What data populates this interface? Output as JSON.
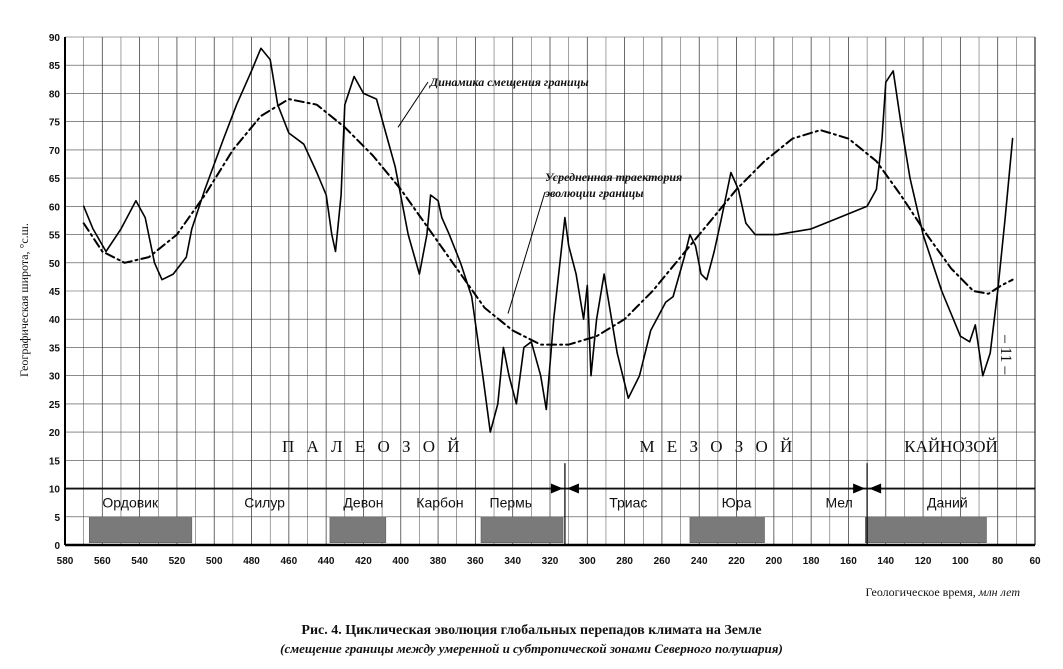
{
  "chart_data": {
    "type": "line",
    "xlabel": "Геологическое время, млн лет",
    "ylabel": "Географическая широта, °с.ш.",
    "xlim": [
      580,
      60
    ],
    "ylim": [
      0,
      90
    ],
    "x_reversed": true,
    "grid": true,
    "xticks": [
      580,
      560,
      540,
      520,
      500,
      480,
      460,
      440,
      420,
      400,
      380,
      360,
      340,
      320,
      300,
      280,
      260,
      240,
      220,
      200,
      180,
      160,
      140,
      120,
      100,
      80,
      60
    ],
    "yticks": [
      0,
      5,
      10,
      15,
      20,
      25,
      30,
      35,
      40,
      45,
      50,
      55,
      60,
      65,
      70,
      75,
      80,
      85,
      90
    ],
    "series": [
      {
        "name": "Динамика смещения границы",
        "style": "solid",
        "points": [
          [
            570,
            60
          ],
          [
            565,
            56
          ],
          [
            558,
            52
          ],
          [
            550,
            56
          ],
          [
            542,
            61
          ],
          [
            537,
            58
          ],
          [
            532,
            50
          ],
          [
            528,
            47
          ],
          [
            522,
            48
          ],
          [
            515,
            51
          ],
          [
            512,
            56
          ],
          [
            505,
            63
          ],
          [
            495,
            72
          ],
          [
            488,
            78
          ],
          [
            480,
            84
          ],
          [
            475,
            88
          ],
          [
            470,
            86
          ],
          [
            466,
            78
          ],
          [
            460,
            73
          ],
          [
            452,
            71
          ],
          [
            445,
            66
          ],
          [
            440,
            62
          ],
          [
            437,
            55
          ],
          [
            435,
            52
          ],
          [
            432,
            62
          ],
          [
            430,
            78
          ],
          [
            425,
            83
          ],
          [
            420,
            80
          ],
          [
            413,
            79
          ],
          [
            408,
            73
          ],
          [
            403,
            67
          ],
          [
            396,
            55
          ],
          [
            390,
            48
          ],
          [
            386,
            55
          ],
          [
            384,
            62
          ],
          [
            380,
            61
          ],
          [
            378,
            58
          ],
          [
            374,
            55
          ],
          [
            368,
            50
          ],
          [
            362,
            44
          ],
          [
            356,
            30
          ],
          [
            352,
            20
          ],
          [
            348,
            25
          ],
          [
            345,
            35
          ],
          [
            342,
            30
          ],
          [
            338,
            25
          ],
          [
            334,
            35
          ],
          [
            330,
            36
          ],
          [
            325,
            30
          ],
          [
            322,
            24
          ],
          [
            318,
            40
          ],
          [
            312,
            58
          ],
          [
            310,
            53
          ],
          [
            306,
            48
          ],
          [
            302,
            40
          ],
          [
            300,
            46
          ],
          [
            298,
            30
          ],
          [
            295,
            40
          ],
          [
            291,
            48
          ],
          [
            288,
            42
          ],
          [
            284,
            34
          ],
          [
            278,
            26
          ],
          [
            272,
            30
          ],
          [
            266,
            38
          ],
          [
            258,
            43
          ],
          [
            254,
            44
          ],
          [
            248,
            51
          ],
          [
            245,
            55
          ],
          [
            242,
            53
          ],
          [
            239,
            48
          ],
          [
            236,
            47
          ],
          [
            232,
            52
          ],
          [
            228,
            58
          ],
          [
            223,
            66
          ],
          [
            219,
            63
          ],
          [
            215,
            57
          ],
          [
            210,
            55
          ],
          [
            198,
            55
          ],
          [
            180,
            56
          ],
          [
            165,
            58
          ],
          [
            150,
            60
          ],
          [
            145,
            63
          ],
          [
            142,
            72
          ],
          [
            140,
            82
          ],
          [
            136,
            84
          ],
          [
            132,
            75
          ],
          [
            127,
            65
          ],
          [
            120,
            55
          ],
          [
            110,
            45
          ],
          [
            100,
            37
          ],
          [
            95,
            36
          ],
          [
            92,
            39
          ],
          [
            88,
            30
          ],
          [
            84,
            34
          ],
          [
            80,
            45
          ],
          [
            76,
            58
          ],
          [
            72,
            72
          ]
        ]
      },
      {
        "name": "Усредненная траектория эволюции границы",
        "style": "dashdot",
        "points": [
          [
            570,
            57
          ],
          [
            560,
            52
          ],
          [
            548,
            50
          ],
          [
            535,
            51
          ],
          [
            520,
            55
          ],
          [
            505,
            62
          ],
          [
            490,
            70
          ],
          [
            475,
            76
          ],
          [
            460,
            79
          ],
          [
            445,
            78
          ],
          [
            430,
            74
          ],
          [
            415,
            69
          ],
          [
            400,
            63
          ],
          [
            385,
            56
          ],
          [
            370,
            49
          ],
          [
            355,
            42
          ],
          [
            340,
            38
          ],
          [
            325,
            35.5
          ],
          [
            310,
            35.5
          ],
          [
            295,
            37
          ],
          [
            280,
            40
          ],
          [
            265,
            45
          ],
          [
            250,
            51
          ],
          [
            235,
            57
          ],
          [
            220,
            63
          ],
          [
            205,
            68
          ],
          [
            190,
            72
          ],
          [
            175,
            73.5
          ],
          [
            160,
            72
          ],
          [
            145,
            68
          ],
          [
            132,
            62
          ],
          [
            118,
            55
          ],
          [
            105,
            49
          ],
          [
            93,
            45
          ],
          [
            85,
            44.5
          ],
          [
            78,
            46
          ],
          [
            72,
            47
          ]
        ]
      }
    ],
    "annotations": [
      "Динамика смещения границы",
      "Усредненная траектория",
      "эволюции границы"
    ],
    "eras": [
      {
        "label": "П А Л Е О З О Й",
        "x": 415,
        "y": 17.5
      },
      {
        "label": "М Е З О З О Й",
        "x": 230,
        "y": 17.5
      },
      {
        "label": "КАЙНОЗОЙ",
        "x": 105,
        "y": 17.5
      }
    ],
    "era_boundaries": [
      312,
      150
    ],
    "periods": [
      {
        "label": "Ордовик",
        "x": 545
      },
      {
        "label": "Силур",
        "x": 473
      },
      {
        "label": "Девон",
        "x": 420
      },
      {
        "label": "Карбон",
        "x": 379
      },
      {
        "label": "Пермь",
        "x": 341
      },
      {
        "label": "Триас",
        "x": 278
      },
      {
        "label": "Юра",
        "x": 220
      },
      {
        "label": "Мел",
        "x": 165
      },
      {
        "label": "Даний",
        "x": 107
      }
    ],
    "glacial_bars": [
      [
        567,
        512
      ],
      [
        438,
        408
      ],
      [
        357,
        313
      ],
      [
        245,
        205
      ],
      [
        151,
        86
      ]
    ]
  },
  "caption": {
    "title": "Рис. 4. Циклическая эволюция глобальных перепадов климата на Земле",
    "subtitle": "(смещение границы между умеренной и субтропической зонами Северного полушария)"
  },
  "page_number": "– 11 –"
}
